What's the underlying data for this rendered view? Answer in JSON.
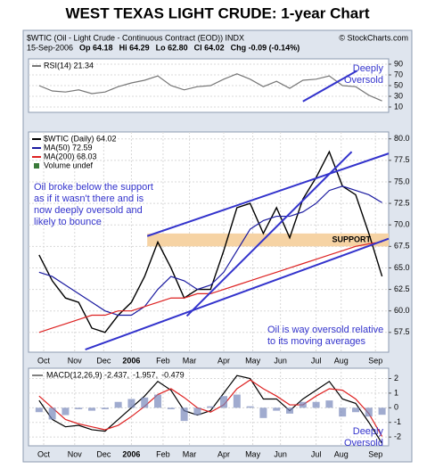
{
  "title": "WEST TEXAS LIGHT CRUDE: 1-year Chart",
  "header": {
    "symbol": "$WTIC (Oil - Light Crude - Continuous Contract (EOD)) INDX",
    "source": "© StockCharts.com",
    "quote": [
      "15-Sep-2006",
      "Op 64.18",
      "Hi 64.29",
      "Lo 62.80",
      "Cl 64.02",
      "Chg -0.09 (-0.14%)"
    ]
  },
  "chart_data": [
    {
      "type": "line",
      "xlim": [
        -0.8,
        26.5
      ],
      "ylim": [
        0,
        100
      ],
      "yticks": [
        10,
        30,
        50,
        70,
        90
      ],
      "grid": true,
      "x": [
        0,
        1,
        2,
        3,
        4,
        5,
        6,
        7,
        8,
        9,
        10,
        11,
        12,
        13,
        14,
        15,
        16,
        17,
        18,
        19,
        20,
        21,
        22,
        23,
        24,
        25,
        26
      ],
      "series": [
        {
          "name": "RSI(14) 21.34",
          "color": "#777777",
          "values": [
            50,
            40,
            38,
            42,
            35,
            38,
            48,
            55,
            60,
            68,
            50,
            42,
            48,
            50,
            62,
            72,
            62,
            48,
            58,
            45,
            60,
            62,
            68,
            50,
            48,
            32,
            21.34
          ]
        }
      ],
      "trendlines": [
        {
          "x": [
            20.0,
            24.1
          ],
          "y": [
            20.4,
            77.8
          ]
        }
      ],
      "trendline_color": "#3333cc",
      "annotations": [
        [
          "Deeply",
          "Oversold"
        ]
      ]
    },
    {
      "type": "line",
      "xlim": [
        -0.8,
        26.5
      ],
      "ylim": [
        55.2,
        80.8
      ],
      "yticks": [
        {
          "value": 57.5,
          "label": "57.5"
        },
        {
          "value": 60,
          "label": "60.0"
        },
        {
          "value": 62.5,
          "label": "62.5"
        },
        {
          "value": 65,
          "label": "65.0"
        },
        {
          "value": 67.5,
          "label": "67.5"
        },
        {
          "value": 70,
          "label": "70.0"
        },
        {
          "value": 72.5,
          "label": "72.5"
        },
        {
          "value": 75,
          "label": "75.0"
        },
        {
          "value": 77.5,
          "label": "77.5"
        },
        {
          "value": 80,
          "label": "80.0"
        }
      ],
      "grid": true,
      "xticks": [
        {
          "value": 0.35,
          "label": "Oct"
        },
        {
          "value": 2.7,
          "label": "Nov"
        },
        {
          "value": 4.9,
          "label": "Dec"
        },
        {
          "value": 7.0,
          "label": "2006"
        },
        {
          "value": 9.4,
          "label": "Feb"
        },
        {
          "value": 11.4,
          "label": "Mar"
        },
        {
          "value": 14.0,
          "label": "Apr"
        },
        {
          "value": 16.2,
          "label": "May"
        },
        {
          "value": 18.3,
          "label": "Jun"
        },
        {
          "value": 21.0,
          "label": "Jul"
        },
        {
          "value": 22.9,
          "label": "Aug"
        },
        {
          "value": 25.5,
          "label": "Sep"
        }
      ],
      "x": [
        0,
        1,
        2,
        3,
        4,
        5,
        6,
        7,
        8,
        9,
        10,
        11,
        12,
        13,
        14,
        15,
        16,
        17,
        18,
        19,
        20,
        21,
        22,
        23,
        24,
        25,
        26
      ],
      "series": [
        {
          "name": "$WTIC (Daily) 64.02",
          "color": "#000000",
          "values": [
            66.5,
            63.5,
            61.5,
            61.0,
            58.0,
            57.5,
            59.5,
            61.0,
            64.0,
            68.0,
            65.0,
            61.5,
            62.5,
            62.5,
            67.0,
            72.0,
            72.5,
            69.0,
            72.0,
            68.5,
            73.0,
            75.5,
            78.5,
            74.5,
            73.5,
            69.0,
            64.02
          ]
        },
        {
          "name": "MA(50) 72.59",
          "color": "#1a1aa0",
          "values": [
            64.5,
            64.0,
            63.0,
            62.0,
            61.0,
            60.0,
            59.5,
            59.5,
            60.5,
            62.5,
            64.0,
            63.5,
            62.5,
            63.0,
            64.5,
            67.0,
            69.5,
            70.5,
            71.0,
            71.0,
            71.5,
            72.5,
            74.0,
            74.5,
            74.0,
            73.5,
            72.59
          ]
        },
        {
          "name": "MA(200) 68.03",
          "color": "#dd2222",
          "values": [
            57.5,
            58.0,
            58.5,
            59.0,
            59.5,
            59.5,
            60.0,
            60.0,
            60.5,
            61.0,
            61.5,
            61.5,
            62.0,
            62.0,
            62.5,
            63.0,
            63.5,
            64.0,
            64.5,
            65.0,
            65.5,
            66.0,
            66.5,
            67.0,
            67.5,
            67.8,
            68.03
          ]
        }
      ],
      "legend_extra": "Volume undef",
      "support_band": {
        "x": [
          8.2,
          26.5
        ],
        "y": [
          67.5,
          69.0
        ],
        "label": "SUPPORT",
        "color": "#f6d3a4"
      },
      "trendlines": [
        {
          "x": [
            8.2,
            26.5
          ],
          "y": [
            68.7,
            78.3
          ]
        },
        {
          "x": [
            3.5,
            26.5
          ],
          "y": [
            55.5,
            68.4
          ]
        },
        {
          "x": [
            11.2,
            23.7
          ],
          "y": [
            59.4,
            78.5
          ]
        }
      ],
      "trendline_color": "#3333cc",
      "annotations": [
        [
          "Oil broke below the support",
          "as if it wasn't there and is",
          "now deeply oversold and",
          "likely to bounce"
        ],
        [
          "Oil is way oversold relative",
          "to its moving averages"
        ]
      ]
    },
    {
      "type": "line",
      "xlim": [
        -0.8,
        26.5
      ],
      "ylim": [
        -2.6,
        2.7
      ],
      "yticks": [
        -2,
        -1,
        0,
        1,
        2
      ],
      "grid": true,
      "xticks": [
        {
          "value": 0.35,
          "label": "Oct"
        },
        {
          "value": 2.7,
          "label": "Nov"
        },
        {
          "value": 4.9,
          "label": "Dec"
        },
        {
          "value": 7.0,
          "label": "2006"
        },
        {
          "value": 9.4,
          "label": "Feb"
        },
        {
          "value": 11.4,
          "label": "Mar"
        },
        {
          "value": 14.0,
          "label": "Apr"
        },
        {
          "value": 16.2,
          "label": "May"
        },
        {
          "value": 18.3,
          "label": "Jun"
        },
        {
          "value": 21.0,
          "label": "Jul"
        },
        {
          "value": 22.9,
          "label": "Aug"
        },
        {
          "value": 25.5,
          "label": "Sep"
        }
      ],
      "x": [
        0,
        1,
        2,
        3,
        4,
        5,
        6,
        7,
        8,
        9,
        10,
        11,
        12,
        13,
        14,
        15,
        16,
        17,
        18,
        19,
        20,
        21,
        22,
        23,
        24,
        25,
        26
      ],
      "series": [
        {
          "name": "MACD(12,26,9) -2.437,",
          "color": "#000000",
          "values": [
            0.5,
            -0.8,
            -1.3,
            -1.2,
            -1.5,
            -1.6,
            -0.8,
            0.0,
            0.8,
            1.8,
            1.2,
            -0.2,
            -0.5,
            -0.2,
            1.0,
            2.2,
            2.0,
            0.6,
            0.6,
            -0.2,
            0.6,
            1.2,
            1.8,
            0.6,
            0.3,
            -1.0,
            -2.437
          ]
        },
        {
          "name": "-1.957,",
          "color": "#dd2222",
          "values": [
            0.8,
            0.0,
            -0.8,
            -1.1,
            -1.3,
            -1.5,
            -1.2,
            -0.6,
            0.1,
            0.9,
            1.3,
            0.7,
            0.0,
            -0.3,
            0.2,
            1.3,
            1.9,
            1.3,
            0.8,
            0.2,
            0.2,
            0.8,
            1.3,
            1.2,
            0.6,
            -0.4,
            -1.957
          ]
        },
        {
          "name": "-0.479",
          "color": "#7788bb",
          "type": "bar",
          "values": [
            -0.3,
            -0.8,
            -0.5,
            -0.1,
            -0.2,
            -0.1,
            0.4,
            0.6,
            0.7,
            0.9,
            -0.1,
            -0.9,
            -0.5,
            0.1,
            0.8,
            0.9,
            0.1,
            -0.7,
            -0.2,
            -0.4,
            0.4,
            0.4,
            0.5,
            -0.6,
            -0.3,
            -0.6,
            -0.479
          ]
        }
      ],
      "annotations": [
        [
          "Deeply",
          "Oversold"
        ]
      ]
    }
  ]
}
